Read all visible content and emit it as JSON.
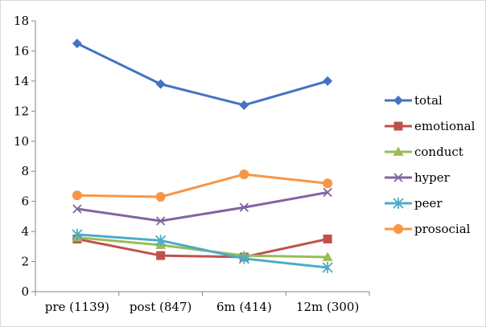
{
  "chart_data": {
    "type": "line",
    "title": "",
    "xlabel": "",
    "ylabel": "",
    "categories": [
      "pre (1139)",
      "post (847)",
      "6m (414)",
      "12m (300)"
    ],
    "ylim": [
      0,
      18
    ],
    "yticks": [
      0,
      2,
      4,
      6,
      8,
      10,
      12,
      14,
      16,
      18
    ],
    "grid": false,
    "legend_position": "right",
    "series": [
      {
        "name": "total",
        "values": [
          16.5,
          13.8,
          12.4,
          14.0
        ],
        "color": "#4472C4",
        "marker": "diamond"
      },
      {
        "name": "emotional",
        "values": [
          3.5,
          2.4,
          2.3,
          3.5
        ],
        "color": "#C0504D",
        "marker": "square"
      },
      {
        "name": "conduct",
        "values": [
          3.6,
          3.1,
          2.4,
          2.3
        ],
        "color": "#9BBB59",
        "marker": "triangle"
      },
      {
        "name": "hyper",
        "values": [
          5.5,
          4.7,
          5.6,
          6.6
        ],
        "color": "#8064A2",
        "marker": "x"
      },
      {
        "name": "peer",
        "values": [
          3.8,
          3.4,
          2.2,
          1.6
        ],
        "color": "#4BACC6",
        "marker": "star"
      },
      {
        "name": "prosocial",
        "values": [
          6.4,
          6.3,
          7.8,
          7.2
        ],
        "color": "#F79646",
        "marker": "circle"
      }
    ]
  }
}
